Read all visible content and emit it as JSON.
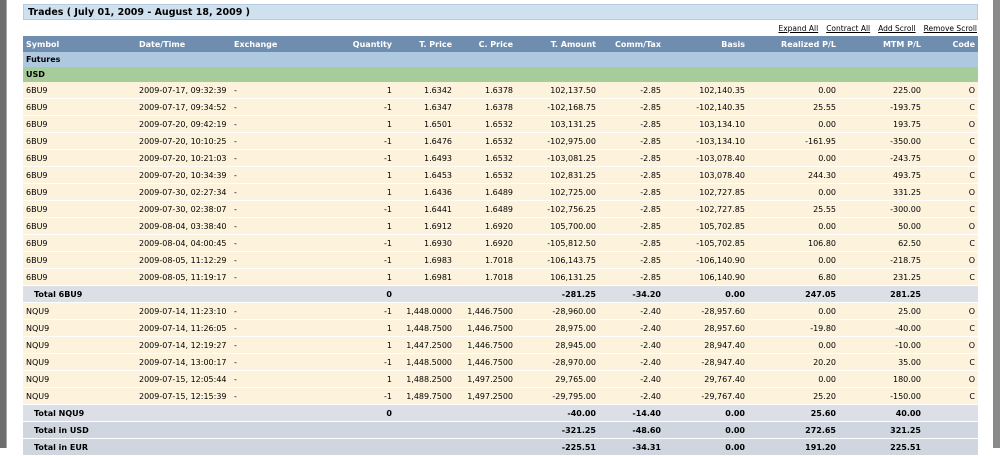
{
  "title": "Trades ( July 01, 2009 - August 18, 2009 )",
  "links": {
    "expand_all": "Expand All",
    "contract_all": "Contract All",
    "add_scroll": "Add Scroll",
    "remove_scroll": "Remove Scroll"
  },
  "columns": [
    "Symbol",
    "Date/Time",
    "Exchange",
    "Quantity",
    "T. Price",
    "C. Price",
    "T. Amount",
    "Comm/Tax",
    "Basis",
    "Realized P/L",
    "MTM P/L",
    "Code"
  ],
  "section": "Futures",
  "currency": "USD",
  "groups": [
    {
      "rows": [
        [
          "6BU9",
          "2009-07-17, 09:32:39",
          "-",
          "1",
          "1.6342",
          "1.6378",
          "102,137.50",
          "-2.85",
          "102,140.35",
          "0.00",
          "225.00",
          "O"
        ],
        [
          "6BU9",
          "2009-07-17, 09:34:52",
          "-",
          "-1",
          "1.6347",
          "1.6378",
          "-102,168.75",
          "-2.85",
          "-102,140.35",
          "25.55",
          "-193.75",
          "C"
        ],
        [
          "6BU9",
          "2009-07-20, 09:42:19",
          "-",
          "1",
          "1.6501",
          "1.6532",
          "103,131.25",
          "-2.85",
          "103,134.10",
          "0.00",
          "193.75",
          "O"
        ],
        [
          "6BU9",
          "2009-07-20, 10:10:25",
          "-",
          "-1",
          "1.6476",
          "1.6532",
          "-102,975.00",
          "-2.85",
          "-103,134.10",
          "-161.95",
          "-350.00",
          "C"
        ],
        [
          "6BU9",
          "2009-07-20, 10:21:03",
          "-",
          "-1",
          "1.6493",
          "1.6532",
          "-103,081.25",
          "-2.85",
          "-103,078.40",
          "0.00",
          "-243.75",
          "O"
        ],
        [
          "6BU9",
          "2009-07-20, 10:34:39",
          "-",
          "1",
          "1.6453",
          "1.6532",
          "102,831.25",
          "-2.85",
          "103,078.40",
          "244.30",
          "493.75",
          "C"
        ],
        [
          "6BU9",
          "2009-07-30, 02:27:34",
          "-",
          "1",
          "1.6436",
          "1.6489",
          "102,725.00",
          "-2.85",
          "102,727.85",
          "0.00",
          "331.25",
          "O"
        ],
        [
          "6BU9",
          "2009-07-30, 02:38:07",
          "-",
          "-1",
          "1.6441",
          "1.6489",
          "-102,756.25",
          "-2.85",
          "-102,727.85",
          "25.55",
          "-300.00",
          "C"
        ],
        [
          "6BU9",
          "2009-08-04, 03:38:40",
          "-",
          "1",
          "1.6912",
          "1.6920",
          "105,700.00",
          "-2.85",
          "105,702.85",
          "0.00",
          "50.00",
          "O"
        ],
        [
          "6BU9",
          "2009-08-04, 04:00:45",
          "-",
          "-1",
          "1.6930",
          "1.6920",
          "-105,812.50",
          "-2.85",
          "-105,702.85",
          "106.80",
          "62.50",
          "C"
        ],
        [
          "6BU9",
          "2009-08-05, 11:12:29",
          "-",
          "-1",
          "1.6983",
          "1.7018",
          "-106,143.75",
          "-2.85",
          "-106,140.90",
          "0.00",
          "-218.75",
          "O"
        ],
        [
          "6BU9",
          "2009-08-05, 11:19:17",
          "-",
          "1",
          "1.6981",
          "1.7018",
          "106,131.25",
          "-2.85",
          "106,140.90",
          "6.80",
          "231.25",
          "C"
        ]
      ],
      "total": [
        "Total 6BU9",
        "",
        "",
        "0",
        "",
        "",
        "-281.25",
        "-34.20",
        "0.00",
        "247.05",
        "281.25",
        ""
      ]
    },
    {
      "rows": [
        [
          "NQU9",
          "2009-07-14, 11:23:10",
          "-",
          "-1",
          "1,448.0000",
          "1,446.7500",
          "-28,960.00",
          "-2.40",
          "-28,957.60",
          "0.00",
          "25.00",
          "O"
        ],
        [
          "NQU9",
          "2009-07-14, 11:26:05",
          "-",
          "1",
          "1,448.7500",
          "1,446.7500",
          "28,975.00",
          "-2.40",
          "28,957.60",
          "-19.80",
          "-40.00",
          "C"
        ],
        [
          "NQU9",
          "2009-07-14, 12:19:27",
          "-",
          "1",
          "1,447.2500",
          "1,446.7500",
          "28,945.00",
          "-2.40",
          "28,947.40",
          "0.00",
          "-10.00",
          "O"
        ],
        [
          "NQU9",
          "2009-07-14, 13:00:17",
          "-",
          "-1",
          "1,448.5000",
          "1,446.7500",
          "-28,970.00",
          "-2.40",
          "-28,947.40",
          "20.20",
          "35.00",
          "C"
        ],
        [
          "NQU9",
          "2009-07-15, 12:05:44",
          "-",
          "1",
          "1,488.2500",
          "1,497.2500",
          "29,765.00",
          "-2.40",
          "29,767.40",
          "0.00",
          "180.00",
          "O"
        ],
        [
          "NQU9",
          "2009-07-15, 12:15:39",
          "-",
          "-1",
          "1,489.7500",
          "1,497.2500",
          "-29,795.00",
          "-2.40",
          "-29,767.40",
          "25.20",
          "-150.00",
          "C"
        ]
      ],
      "total": [
        "Total NQU9",
        "",
        "",
        "0",
        "",
        "",
        "-40.00",
        "-14.40",
        "0.00",
        "25.60",
        "40.00",
        ""
      ]
    }
  ],
  "grand_totals": [
    [
      "Total in USD",
      "",
      "",
      "",
      "",
      "",
      "-321.25",
      "-48.60",
      "0.00",
      "272.65",
      "321.25",
      ""
    ],
    [
      "Total in EUR",
      "",
      "",
      "",
      "",
      "",
      "-225.51",
      "-34.31",
      "0.00",
      "191.20",
      "225.51",
      ""
    ]
  ]
}
